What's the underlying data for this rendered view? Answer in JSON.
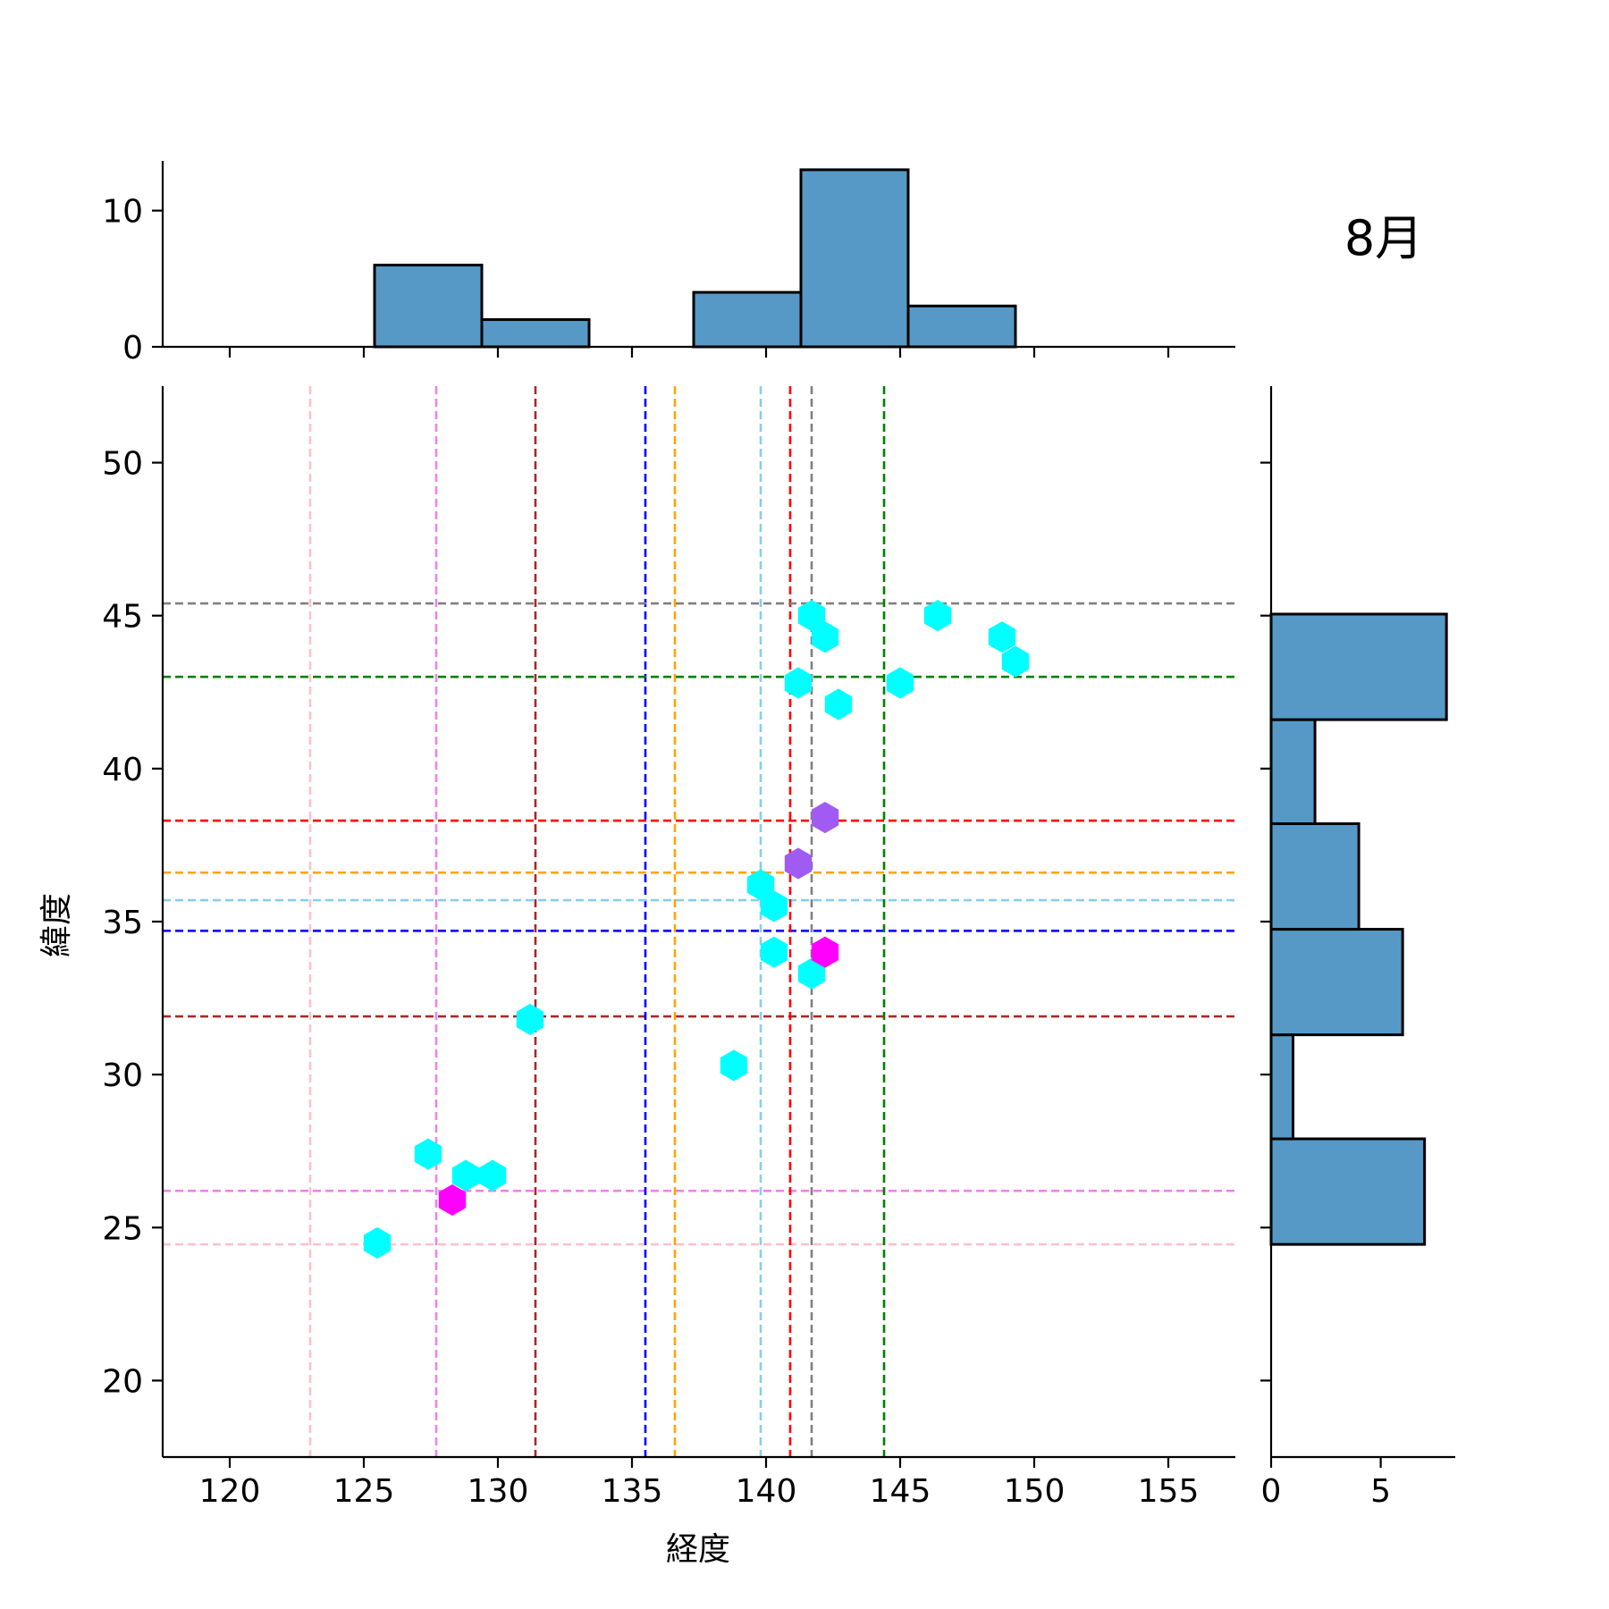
{
  "chart_data": {
    "type": "hexbin",
    "title": "8月",
    "xlabel": "経度",
    "ylabel": "緯度",
    "xlim": [
      117.5,
      157.5
    ],
    "ylim": [
      17.5,
      52.5
    ],
    "xticks": [
      120,
      125,
      130,
      135,
      140,
      145,
      150,
      155
    ],
    "yticks": [
      20,
      25,
      30,
      35,
      40,
      45,
      50
    ],
    "colors": {
      "bar_fill": "#5799c6",
      "hex_single": "#00ffff",
      "hex_double": "#a05cf2",
      "hex_triple": "#ff00ff"
    },
    "hexbins": [
      {
        "lon": 125.5,
        "lat": 24.5,
        "count": 1
      },
      {
        "lon": 127.4,
        "lat": 27.4,
        "count": 1
      },
      {
        "lon": 128.3,
        "lat": 25.9,
        "count": 3
      },
      {
        "lon": 128.8,
        "lat": 26.7,
        "count": 1
      },
      {
        "lon": 129.8,
        "lat": 26.7,
        "count": 1
      },
      {
        "lon": 131.2,
        "lat": 31.8,
        "count": 1
      },
      {
        "lon": 138.8,
        "lat": 30.3,
        "count": 1
      },
      {
        "lon": 139.8,
        "lat": 36.2,
        "count": 1
      },
      {
        "lon": 140.3,
        "lat": 35.5,
        "count": 1
      },
      {
        "lon": 140.3,
        "lat": 34.0,
        "count": 1
      },
      {
        "lon": 141.2,
        "lat": 36.9,
        "count": 2
      },
      {
        "lon": 141.2,
        "lat": 42.8,
        "count": 1
      },
      {
        "lon": 141.7,
        "lat": 33.3,
        "count": 1
      },
      {
        "lon": 141.7,
        "lat": 45.0,
        "count": 1
      },
      {
        "lon": 142.2,
        "lat": 38.4,
        "count": 2
      },
      {
        "lon": 142.2,
        "lat": 34.0,
        "count": 3
      },
      {
        "lon": 142.2,
        "lat": 44.3,
        "count": 1
      },
      {
        "lon": 142.7,
        "lat": 42.1,
        "count": 1
      },
      {
        "lon": 145.0,
        "lat": 42.8,
        "count": 1
      },
      {
        "lon": 146.4,
        "lat": 45.0,
        "count": 1
      },
      {
        "lon": 148.8,
        "lat": 44.3,
        "count": 1
      },
      {
        "lon": 149.3,
        "lat": 43.5,
        "count": 1
      }
    ],
    "reference_lines": [
      {
        "color": "#ffc0cb",
        "lon": 123.0,
        "lat": 24.45
      },
      {
        "color": "#ee82ee",
        "lon": 127.7,
        "lat": 26.2
      },
      {
        "color": "#a52a2a",
        "lon": 131.4,
        "lat": 31.9
      },
      {
        "color": "#0000ff",
        "lon": 135.5,
        "lat": 34.7
      },
      {
        "color": "#ffa500",
        "lon": 136.6,
        "lat": 36.6
      },
      {
        "color": "#87ceeb",
        "lon": 139.8,
        "lat": 35.7
      },
      {
        "color": "#ff0000",
        "lon": 140.9,
        "lat": 38.3
      },
      {
        "color": "#808080",
        "lon": 141.7,
        "lat": 45.4
      },
      {
        "color": "#008000",
        "lon": 144.4,
        "lat": 43.0
      }
    ],
    "top_histogram": {
      "yticks": [
        0,
        10
      ],
      "ylim": [
        0,
        13.65
      ],
      "bins": [
        {
          "x0": 125.4,
          "x1": 129.4,
          "count": 6
        },
        {
          "x0": 129.4,
          "x1": 133.4,
          "count": 2
        },
        {
          "x0": 133.4,
          "x1": 137.3,
          "count": 0
        },
        {
          "x0": 137.3,
          "x1": 141.3,
          "count": 4
        },
        {
          "x0": 141.3,
          "x1": 145.3,
          "count": 13
        },
        {
          "x0": 145.3,
          "x1": 149.3,
          "count": 3
        }
      ]
    },
    "right_histogram": {
      "xticks": [
        0,
        5
      ],
      "xlim": [
        0,
        8.4
      ],
      "bins": [
        {
          "y0": 24.45,
          "y1": 27.9,
          "count": 7
        },
        {
          "y0": 27.9,
          "y1": 31.3,
          "count": 1
        },
        {
          "y0": 31.3,
          "y1": 34.75,
          "count": 6
        },
        {
          "y0": 34.75,
          "y1": 38.2,
          "count": 4
        },
        {
          "y0": 38.2,
          "y1": 41.6,
          "count": 2
        },
        {
          "y0": 41.6,
          "y1": 45.05,
          "count": 8
        }
      ]
    }
  }
}
